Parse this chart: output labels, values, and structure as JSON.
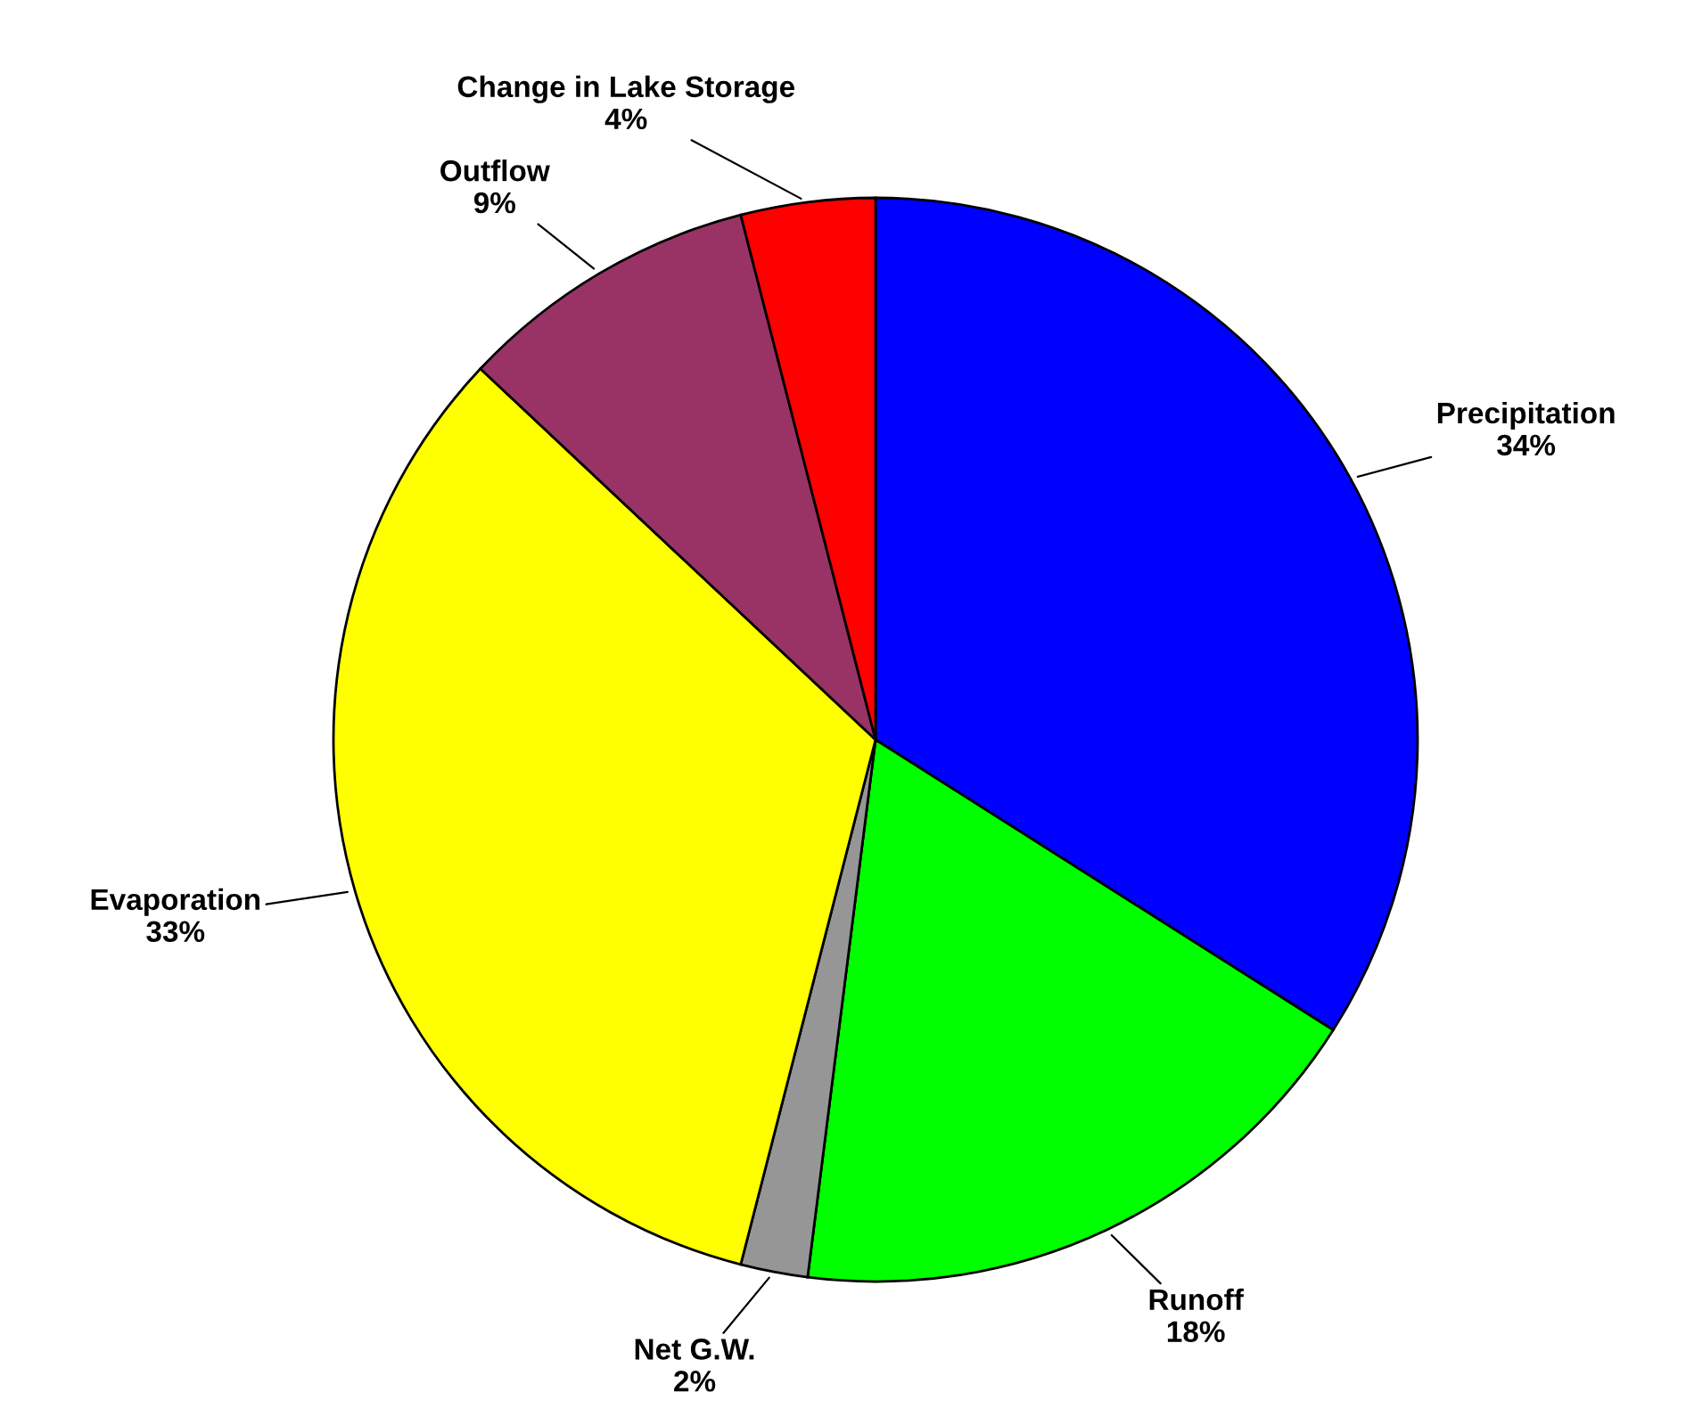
{
  "chart_data": {
    "type": "pie",
    "categories": [
      "Precipitation",
      "Runoff",
      "Net G.W.",
      "Evaporation",
      "Outflow",
      "Change in Lake Storage"
    ],
    "values": [
      34,
      18,
      2,
      33,
      9,
      4
    ],
    "colors": [
      "#0000ff",
      "#00ff00",
      "#969696",
      "#ffff00",
      "#993366",
      "#ff0000"
    ],
    "value_labels": [
      "34%",
      "18%",
      "2%",
      "33%",
      "9%",
      "4%"
    ]
  }
}
